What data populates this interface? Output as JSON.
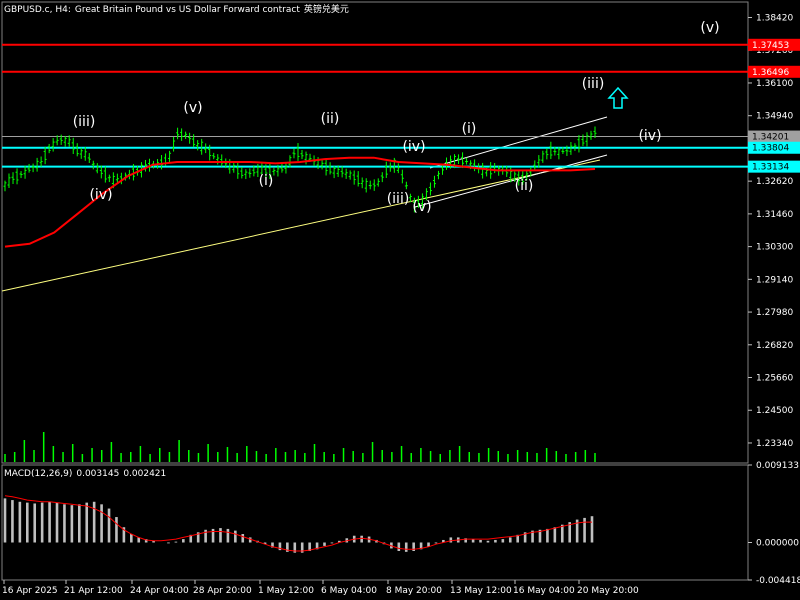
{
  "header": {
    "symbol": "GBPUSD.c, H4:",
    "description": "Great Britain Pound vs US Dollar Forward contract",
    "cn_label": "英镑兑美元"
  },
  "macd_header": {
    "label": "MACD(12,26,9)",
    "main_value": "0.003145",
    "signal_value": "0.002421"
  },
  "colors": {
    "background": "#000000",
    "candle": "#00ff00",
    "ma": "#ff0000",
    "trendline": "#ffff80",
    "channel": "#ffffff",
    "cyan_level": "#00ffff",
    "red_level": "#ff0000",
    "macd_hist": "#c0c0c0",
    "macd_signal": "#ff0000",
    "wave_label": "#ffffff",
    "arrow": "#00ffff"
  },
  "chart_data": [
    {
      "type": "candlestick",
      "title": "GBPUSD.c, H4",
      "y_ticks": [
        "1.38420",
        "1.37260",
        "1.36100",
        "1.34940",
        "1.33780",
        "1.32620",
        "1.31460",
        "1.30300",
        "1.29140",
        "1.27980",
        "1.26820",
        "1.25660",
        "1.24500",
        "1.23340"
      ],
      "x_ticks": [
        "16 Apr 2025",
        "21 Apr 12:00",
        "24 Apr 04:00",
        "28 Apr 20:00",
        "1 May 12:00",
        "6 May 04:00",
        "8 May 20:00",
        "13 May 12:00",
        "16 May 04:00",
        "20 May 20:00"
      ],
      "ylim": [
        1.2263,
        1.3897
      ],
      "price_points": [
        1.325,
        1.3275,
        1.329,
        1.331,
        1.333,
        1.3385,
        1.341,
        1.3405,
        1.337,
        1.3355,
        1.331,
        1.3285,
        1.3265,
        1.3275,
        1.329,
        1.3305,
        1.332,
        1.3325,
        1.334,
        1.343,
        1.3425,
        1.3395,
        1.338,
        1.335,
        1.333,
        1.3315,
        1.329,
        1.329,
        1.3305,
        1.3295,
        1.33,
        1.331,
        1.337,
        1.335,
        1.3335,
        1.332,
        1.33,
        1.3295,
        1.3285,
        1.3265,
        1.3245,
        1.325,
        1.33,
        1.3325,
        1.3265,
        1.3175,
        1.3195,
        1.324,
        1.33,
        1.333,
        1.334,
        1.333,
        1.331,
        1.3295,
        1.3305,
        1.33,
        1.328,
        1.327,
        1.33,
        1.334,
        1.337,
        1.3365,
        1.337,
        1.339,
        1.341,
        1.3435
      ],
      "ma_points": [
        1.303,
        1.304,
        1.308,
        1.315,
        1.322,
        1.328,
        1.332,
        1.333,
        1.333,
        1.333,
        1.333,
        1.3325,
        1.333,
        1.334,
        1.3345,
        1.3345,
        1.333,
        1.3325,
        1.332,
        1.331,
        1.33,
        1.33,
        1.33,
        1.33,
        1.3305
      ],
      "volume_points": [
        8,
        10,
        22,
        12,
        30,
        16,
        10,
        18,
        8,
        14,
        12,
        20,
        9,
        10,
        16,
        8,
        14,
        10,
        22,
        12,
        9,
        18,
        10,
        15,
        9,
        16,
        11,
        8,
        14,
        10,
        12,
        9,
        18,
        10,
        8,
        14,
        11,
        9,
        20,
        12,
        10,
        16,
        9,
        14,
        11,
        8,
        12,
        16,
        10,
        9,
        14,
        11,
        8,
        12,
        10,
        9,
        14,
        11,
        8,
        10,
        12,
        9
      ],
      "horizontal_levels": [
        {
          "label": "1.37453",
          "value": 1.37453,
          "color": "red"
        },
        {
          "label": "1.36496",
          "value": 1.36496,
          "color": "red"
        },
        {
          "label": "1.34201",
          "value": 1.34201,
          "color": "gray"
        },
        {
          "label": "1.33804",
          "value": 1.33804,
          "color": "cyan"
        },
        {
          "label": "1.33134",
          "value": 1.33134,
          "color": "cyan"
        }
      ],
      "wave_labels": [
        "(iii)",
        "(iv)",
        "(v)",
        "(i)",
        "(ii)",
        "(iv)",
        "(iii)",
        "(v)",
        "(i)",
        "(ii)",
        "(iii)",
        "(iv)",
        "(v)"
      ]
    },
    {
      "type": "bar",
      "title": "MACD(12,26,9)",
      "y_ticks": [
        "0.009133",
        "0.000000",
        "-0.004418"
      ],
      "ylim": [
        -0.004418,
        0.009133
      ],
      "histogram": [
        0.0052,
        0.005,
        0.0048,
        0.0047,
        0.0046,
        0.0047,
        0.0048,
        0.0047,
        0.0045,
        0.0044,
        0.0045,
        0.0047,
        0.0048,
        0.0045,
        0.004,
        0.003,
        0.0018,
        0.001,
        0.0006,
        0.0004,
        0.0002,
        0.0,
        -0.0001,
        0.0001,
        0.0004,
        0.0009,
        0.0012,
        0.0015,
        0.0016,
        0.0017,
        0.0016,
        0.0014,
        0.001,
        0.0006,
        0.0002,
        -0.0002,
        -0.0006,
        -0.0009,
        -0.0011,
        -0.0012,
        -0.0012,
        -0.001,
        -0.0008,
        -0.0004,
        -0.0001,
        0.0002,
        0.0005,
        0.0008,
        0.0008,
        0.0007,
        0.0003,
        -0.0002,
        -0.0007,
        -0.001,
        -0.0011,
        -0.001,
        -0.0008,
        -0.0005,
        -0.0001,
        0.0003,
        0.0006,
        0.0006,
        0.0005,
        0.0004,
        0.0003,
        0.0002,
        0.0003,
        0.0004,
        0.0006,
        0.0009,
        0.0012,
        0.0014,
        0.0015,
        0.0016,
        0.0018,
        0.0021,
        0.0024,
        0.0027,
        0.0029,
        0.0031
      ],
      "signal": [
        0.0055,
        0.0054,
        0.0052,
        0.005,
        0.0049,
        0.0048,
        0.0048,
        0.0047,
        0.0046,
        0.0045,
        0.0044,
        0.0043,
        0.004,
        0.0036,
        0.003,
        0.0022,
        0.0015,
        0.001,
        0.0006,
        0.0003,
        0.0002,
        0.0002,
        0.0003,
        0.0004,
        0.0006,
        0.0008,
        0.001,
        0.0012,
        0.0013,
        0.0013,
        0.0012,
        0.001,
        0.0007,
        0.0004,
        0.0001,
        -0.0002,
        -0.0005,
        -0.0007,
        -0.0009,
        -0.001,
        -0.001,
        -0.0009,
        -0.0007,
        -0.0005,
        -0.0003,
        0.0,
        0.0002,
        0.0004,
        0.0005,
        0.0004,
        0.0002,
        -0.0001,
        -0.0004,
        -0.0007,
        -0.0008,
        -0.0008,
        -0.0007,
        -0.0005,
        -0.0002,
        0.0,
        0.0002,
        0.0003,
        0.0004,
        0.0004,
        0.0004,
        0.0004,
        0.0005,
        0.0006,
        0.0007,
        0.0008,
        0.001,
        0.0012,
        0.0013,
        0.0015,
        0.0017,
        0.0019,
        0.0021,
        0.0023,
        0.0024,
        0.0024
      ]
    }
  ]
}
